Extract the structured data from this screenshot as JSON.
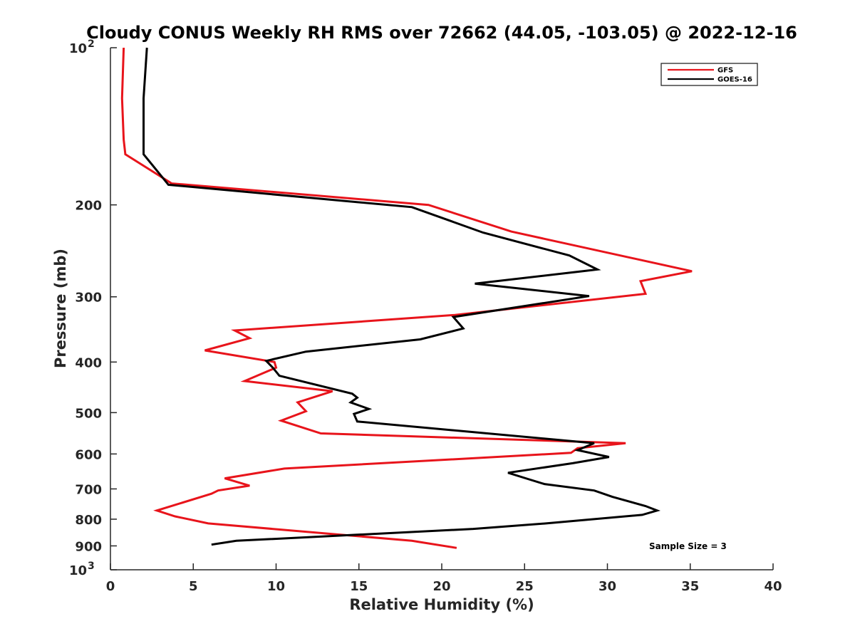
{
  "chart_data": {
    "type": "line",
    "title": "Cloudy CONUS Weekly RH RMS over 72662 (44.05, -103.05) @ 2022-12-16",
    "xlabel": "Relative Humidity (%)",
    "ylabel": "Pressure (mb)",
    "xlim": [
      0,
      40
    ],
    "ylim": [
      100,
      1000
    ],
    "yscale": "log",
    "y_reversed": true,
    "grid": false,
    "legend_position": "top-right",
    "x_ticks": [
      0,
      5,
      10,
      15,
      20,
      25,
      30,
      35,
      40
    ],
    "x_tick_labels": [
      "0",
      "5",
      "10",
      "15",
      "20",
      "25",
      "30",
      "35",
      "40"
    ],
    "y_ticks": [
      100,
      200,
      300,
      400,
      500,
      600,
      700,
      800,
      900,
      1000
    ],
    "y_tick_labels": [
      {
        "base": "10",
        "exp": "2"
      },
      {
        "base": "200",
        "exp": ""
      },
      {
        "base": "300",
        "exp": ""
      },
      {
        "base": "400",
        "exp": ""
      },
      {
        "base": "500",
        "exp": ""
      },
      {
        "base": "600",
        "exp": ""
      },
      {
        "base": "700",
        "exp": ""
      },
      {
        "base": "800",
        "exp": ""
      },
      {
        "base": "900",
        "exp": ""
      },
      {
        "base": "10",
        "exp": "3"
      }
    ],
    "series": [
      {
        "name": "GFS",
        "color": "#e8141b",
        "points": [
          [
            0.8,
            100
          ],
          [
            0.7,
            125
          ],
          [
            0.8,
            150
          ],
          [
            0.9,
            160
          ],
          [
            3.7,
            182
          ],
          [
            19.2,
            200
          ],
          [
            24.2,
            225
          ],
          [
            35.1,
            268
          ],
          [
            32.0,
            280
          ],
          [
            32.3,
            296
          ],
          [
            20.8,
            325
          ],
          [
            7.5,
            348
          ],
          [
            8.4,
            360
          ],
          [
            5.7,
            380
          ],
          [
            9.9,
            400
          ],
          [
            10.0,
            410
          ],
          [
            8.1,
            435
          ],
          [
            13.4,
            455
          ],
          [
            11.3,
            478
          ],
          [
            11.8,
            497
          ],
          [
            10.3,
            518
          ],
          [
            12.7,
            548
          ],
          [
            31.1,
            572
          ],
          [
            28.2,
            585
          ],
          [
            27.8,
            597
          ],
          [
            10.5,
            640
          ],
          [
            6.9,
            668
          ],
          [
            8.4,
            690
          ],
          [
            6.5,
            705
          ],
          [
            6.1,
            715
          ],
          [
            2.8,
            770
          ],
          [
            3.9,
            790
          ],
          [
            5.9,
            815
          ],
          [
            18.2,
            880
          ],
          [
            20.9,
            908
          ]
        ]
      },
      {
        "name": "GOES-16",
        "color": "#000000",
        "points": [
          [
            2.2,
            100
          ],
          [
            2.0,
            125
          ],
          [
            2.0,
            150
          ],
          [
            2.0,
            160
          ],
          [
            3.5,
            183
          ],
          [
            18.2,
            202
          ],
          [
            22.5,
            226
          ],
          [
            27.7,
            250
          ],
          [
            29.4,
            266
          ],
          [
            22.0,
            283
          ],
          [
            28.9,
            299
          ],
          [
            20.7,
            328
          ],
          [
            21.3,
            345
          ],
          [
            18.7,
            362
          ],
          [
            11.8,
            382
          ],
          [
            9.4,
            398
          ],
          [
            9.8,
            410
          ],
          [
            10.2,
            425
          ],
          [
            14.6,
            460
          ],
          [
            14.9,
            468
          ],
          [
            14.5,
            478
          ],
          [
            15.6,
            492
          ],
          [
            14.7,
            503
          ],
          [
            14.9,
            520
          ],
          [
            29.2,
            572
          ],
          [
            28.2,
            590
          ],
          [
            30.1,
            608
          ],
          [
            27.9,
            625
          ],
          [
            24.0,
            652
          ],
          [
            25.2,
            670
          ],
          [
            26.2,
            685
          ],
          [
            29.2,
            705
          ],
          [
            30.3,
            725
          ],
          [
            32.3,
            755
          ],
          [
            33.0,
            770
          ],
          [
            32.1,
            785
          ],
          [
            26.3,
            815
          ],
          [
            21.9,
            835
          ],
          [
            7.6,
            880
          ],
          [
            6.1,
            895
          ]
        ]
      }
    ],
    "annotations": [
      {
        "text": "Sample Size = 3"
      }
    ]
  }
}
